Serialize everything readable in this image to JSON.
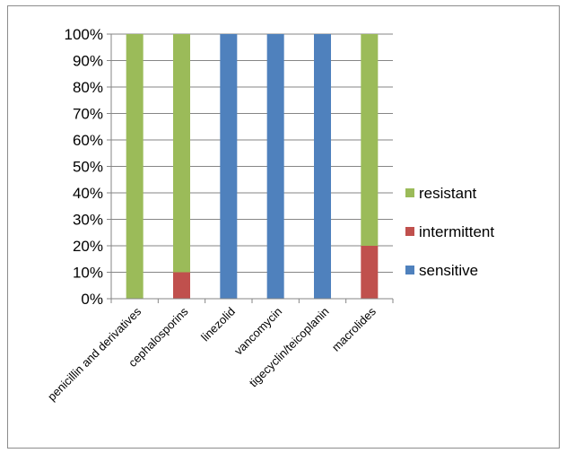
{
  "chart_data": {
    "type": "bar",
    "stacked": true,
    "percent": true,
    "categories": [
      "penicillin and derivatives",
      "cephalosporins",
      "linezolid",
      "vancomycin",
      "tigecyclin/teicoplanin",
      "macrolides"
    ],
    "series": [
      {
        "name": "sensitive",
        "color": "#4F81BD",
        "values": [
          0,
          0,
          100,
          100,
          100,
          0
        ]
      },
      {
        "name": "intermittent",
        "color": "#C0504D",
        "values": [
          0,
          10,
          0,
          0,
          0,
          20
        ]
      },
      {
        "name": "resistant",
        "color": "#9BBB59",
        "values": [
          100,
          90,
          0,
          0,
          0,
          80
        ]
      }
    ],
    "y_ticks": [
      "0%",
      "10%",
      "20%",
      "30%",
      "40%",
      "50%",
      "60%",
      "70%",
      "80%",
      "90%",
      "100%"
    ],
    "ylim": [
      0,
      100
    ],
    "legend_order": [
      "resistant",
      "intermittent",
      "sensitive"
    ],
    "legend_position": "right",
    "grid": true
  }
}
